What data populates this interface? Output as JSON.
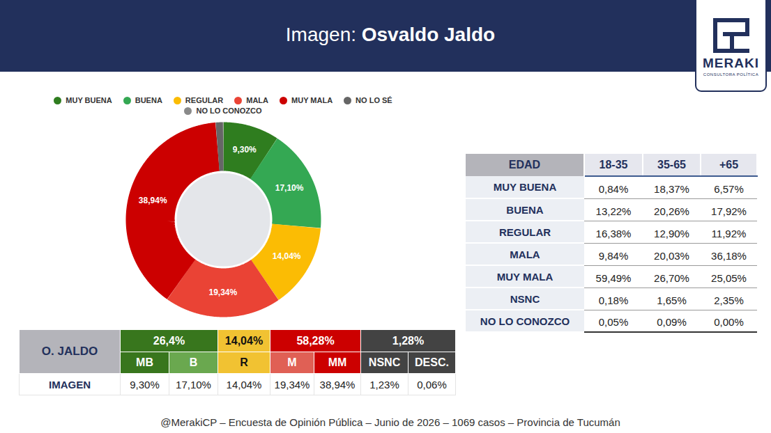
{
  "header": {
    "title_prefix": "Imagen:",
    "title_name": "Osvaldo Jaldo"
  },
  "logo": {
    "name": "MERAKI",
    "subtitle": "CONSULTORA POLÍTICA"
  },
  "chart_data": {
    "type": "pie",
    "categories": [
      "MUY BUENA",
      "BUENA",
      "REGULAR",
      "MALA",
      "MUY MALA",
      "NO LO SÉ",
      "NO LO CONOZCO"
    ],
    "values": [
      9.3,
      17.1,
      14.04,
      19.34,
      38.94,
      1.23,
      0.06
    ],
    "value_labels": [
      "9,30%",
      "17,10%",
      "14,04%",
      "19,34%",
      "38,94%",
      null,
      null
    ],
    "colors": [
      "#2f7d1f",
      "#34a853",
      "#fbbc04",
      "#ea4335",
      "#cc0000",
      "#666666",
      "#8a8a8a"
    ],
    "data_labels": true,
    "legend": "top"
  },
  "summary_table": {
    "row_label": "O. JALDO",
    "groups": [
      {
        "total": "26,4%",
        "columns": [
          "MB",
          "B"
        ]
      },
      {
        "total": "14,04%",
        "columns": [
          "R"
        ]
      },
      {
        "total": "58,28%",
        "columns": [
          "M",
          "MM"
        ]
      },
      {
        "total": "1,28%",
        "columns": [
          "NSNC",
          "DESC."
        ]
      }
    ],
    "row": {
      "label": "IMAGEN",
      "values": [
        "9,30%",
        "17,10%",
        "14,04%",
        "19,34%",
        "38,94%",
        "1,23%",
        "0,06%"
      ]
    }
  },
  "age_table": {
    "header": [
      "EDAD",
      "18-35",
      "35-65",
      "+65"
    ],
    "rows": [
      [
        "MUY BUENA",
        "0,84%",
        "18,37%",
        "6,57%"
      ],
      [
        "BUENA",
        "13,22%",
        "20,26%",
        "17,92%"
      ],
      [
        "REGULAR",
        "16,38%",
        "12,90%",
        "11,92%"
      ],
      [
        "MALA",
        "9,84%",
        "20,03%",
        "36,18%"
      ],
      [
        "MUY MALA",
        "59,49%",
        "26,70%",
        "25,05%"
      ],
      [
        "NSNC",
        "0,18%",
        "1,65%",
        "2,35%"
      ],
      [
        "NO LO CONOZCO",
        "0,05%",
        "0,09%",
        "0,00%"
      ]
    ]
  },
  "footer": "@MerakiCP – Encuesta de Opinión Pública – Junio de 2026 – 1069 casos – Provincia de Tucumán"
}
